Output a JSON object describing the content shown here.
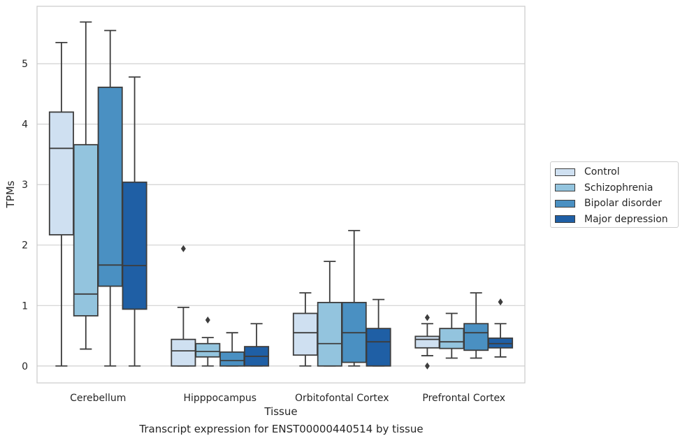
{
  "chart_data": {
    "type": "box",
    "title": "",
    "xlabel": "Tissue",
    "ylabel": "TPMs",
    "caption": "Transcript expression for ENST00000440514 by tissue",
    "categories": [
      "Cerebellum",
      "Hipppocampus",
      "Orbitofontal Cortex",
      "Prefrontal Cortex"
    ],
    "ylim": [
      -0.28,
      5.95
    ],
    "yticks": [
      0,
      1,
      2,
      3,
      4,
      5
    ],
    "grid": "horizontal",
    "legend_position": "right",
    "series": [
      {
        "name": "Control",
        "color": "#cfe0f1",
        "boxes": [
          {
            "whislo": 0.0,
            "q1": 2.17,
            "med": 3.6,
            "q3": 4.2,
            "whishi": 5.35,
            "fliers": []
          },
          {
            "whislo": 0.0,
            "q1": 0.0,
            "med": 0.25,
            "q3": 0.44,
            "whishi": 0.97,
            "fliers": [
              1.94
            ]
          },
          {
            "whislo": 0.0,
            "q1": 0.18,
            "med": 0.55,
            "q3": 0.87,
            "whishi": 1.21,
            "fliers": []
          },
          {
            "whislo": 0.17,
            "q1": 0.3,
            "med": 0.44,
            "q3": 0.49,
            "whishi": 0.7,
            "fliers": [
              0.0,
              0.8
            ]
          }
        ]
      },
      {
        "name": "Schizophrenia",
        "color": "#93c4de",
        "boxes": [
          {
            "whislo": 0.28,
            "q1": 0.83,
            "med": 1.19,
            "q3": 3.66,
            "whishi": 5.69,
            "fliers": []
          },
          {
            "whislo": 0.0,
            "q1": 0.15,
            "med": 0.24,
            "q3": 0.37,
            "whishi": 0.47,
            "fliers": [
              0.76
            ]
          },
          {
            "whislo": 0.0,
            "q1": 0.0,
            "med": 0.37,
            "q3": 1.05,
            "whishi": 1.73,
            "fliers": []
          },
          {
            "whislo": 0.13,
            "q1": 0.29,
            "med": 0.4,
            "q3": 0.62,
            "whishi": 0.87,
            "fliers": []
          }
        ]
      },
      {
        "name": "Bipolar disorder",
        "color": "#4a90c2",
        "boxes": [
          {
            "whislo": 0.0,
            "q1": 1.32,
            "med": 1.67,
            "q3": 4.61,
            "whishi": 5.55,
            "fliers": []
          },
          {
            "whislo": 0.0,
            "q1": 0.0,
            "med": 0.09,
            "q3": 0.23,
            "whishi": 0.55,
            "fliers": []
          },
          {
            "whislo": 0.0,
            "q1": 0.06,
            "med": 0.55,
            "q3": 1.05,
            "whishi": 2.24,
            "fliers": []
          },
          {
            "whislo": 0.13,
            "q1": 0.26,
            "med": 0.55,
            "q3": 0.7,
            "whishi": 1.21,
            "fliers": []
          }
        ]
      },
      {
        "name": "Major depression",
        "color": "#1f5fa5",
        "boxes": [
          {
            "whislo": 0.0,
            "q1": 0.94,
            "med": 1.66,
            "q3": 3.04,
            "whishi": 4.78,
            "fliers": []
          },
          {
            "whislo": 0.0,
            "q1": 0.0,
            "med": 0.16,
            "q3": 0.32,
            "whishi": 0.7,
            "fliers": []
          },
          {
            "whislo": 0.0,
            "q1": 0.0,
            "med": 0.4,
            "q3": 0.62,
            "whishi": 1.1,
            "fliers": []
          },
          {
            "whislo": 0.15,
            "q1": 0.3,
            "med": 0.37,
            "q3": 0.46,
            "whishi": 0.7,
            "fliers": [
              1.06
            ]
          }
        ]
      }
    ]
  }
}
